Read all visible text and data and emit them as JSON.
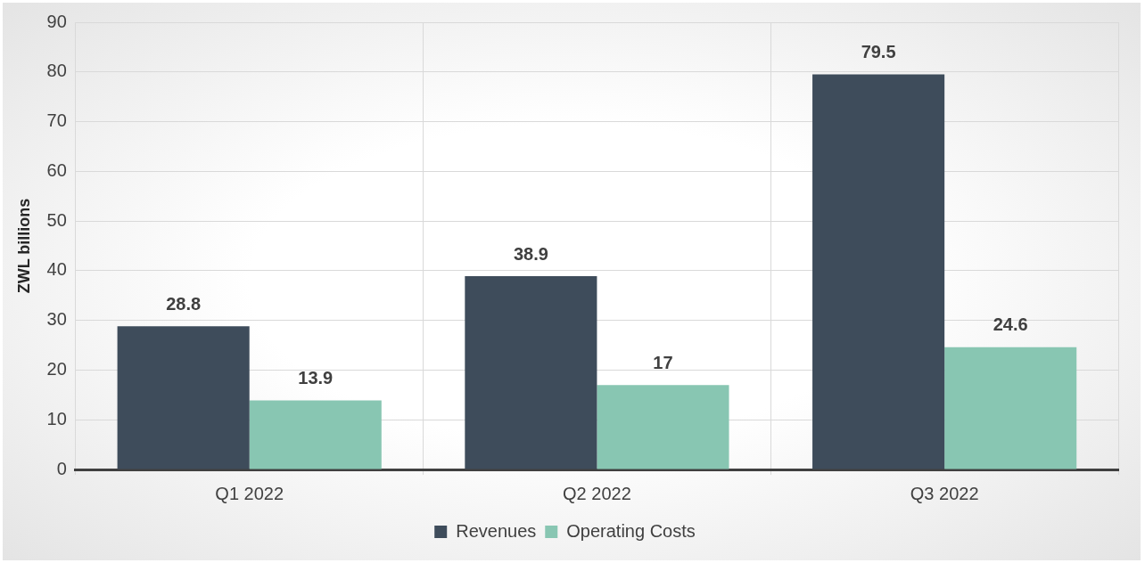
{
  "chart_data": {
    "type": "bar",
    "ylabel": "ZWL billions",
    "categories": [
      "Q1 2022",
      "Q2 2022",
      "Q3 2022"
    ],
    "series": [
      {
        "name": "Revenues",
        "color": "#3e4c5b",
        "values": [
          28.8,
          38.9,
          79.5
        ]
      },
      {
        "name": "Operating Costs",
        "color": "#88c6b2",
        "values": [
          13.9,
          17,
          24.6
        ]
      }
    ],
    "ylim": [
      0,
      90
    ],
    "yticks": [
      0,
      10,
      20,
      30,
      40,
      50,
      60,
      70,
      80,
      90
    ],
    "grid": true,
    "legend": "bottom",
    "data_labels": true
  }
}
